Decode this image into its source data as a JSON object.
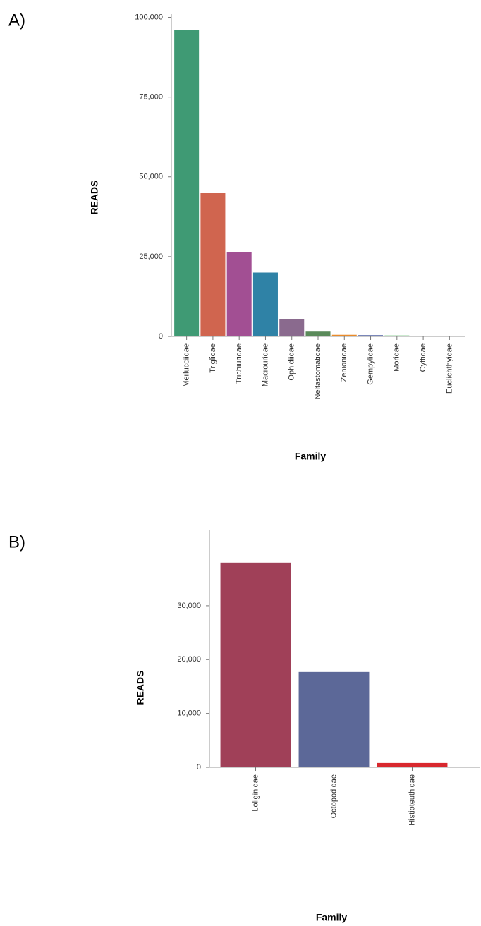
{
  "chart_data": [
    {
      "type": "bar",
      "label": "A)",
      "y_label": "READS",
      "x_label": "Family",
      "categories": [
        "Merlucciidae",
        "Triglidae",
        "Trichiuridae",
        "Macrouridae",
        "Ophidiidae",
        "Neltastomatidae",
        "Zenionidae",
        "Gempylidae",
        "Moridae",
        "Cyttidae",
        "Euclichthyidae"
      ],
      "values": [
        96000,
        45000,
        26500,
        20000,
        5500,
        1500,
        500,
        400,
        300,
        150,
        100
      ],
      "colors": [
        "#3f9a74",
        "#d0654f",
        "#a24f93",
        "#2f82a6",
        "#8a6a8e",
        "#5a8a5a",
        "#e98b2a",
        "#5a6aa8",
        "#6fc27a",
        "#d03030",
        "#8a5a9a"
      ],
      "ylim": [
        0,
        101000
      ],
      "yticks": [
        0,
        {
          "value": 25000,
          "label": "25,000"
        },
        {
          "value": 50000,
          "label": "50,000"
        },
        {
          "value": 75000,
          "label": "75,000"
        },
        {
          "value": 100000,
          "label": "100,000"
        }
      ]
    },
    {
      "type": "bar",
      "label": "B)",
      "y_label": "READS",
      "x_label": "Family",
      "categories": [
        "Loliginidae",
        "Octopodidae",
        "Histioteuthidae"
      ],
      "values": [
        38000,
        17700,
        800
      ],
      "colors": [
        "#a04058",
        "#5c6898",
        "#d8282e"
      ],
      "ylim": [
        0,
        44000
      ],
      "yticks": [
        0,
        {
          "value": 10000,
          "label": "10,000"
        },
        {
          "value": 20000,
          "label": "20,000"
        },
        {
          "value": 30000,
          "label": "30,000"
        }
      ]
    }
  ]
}
